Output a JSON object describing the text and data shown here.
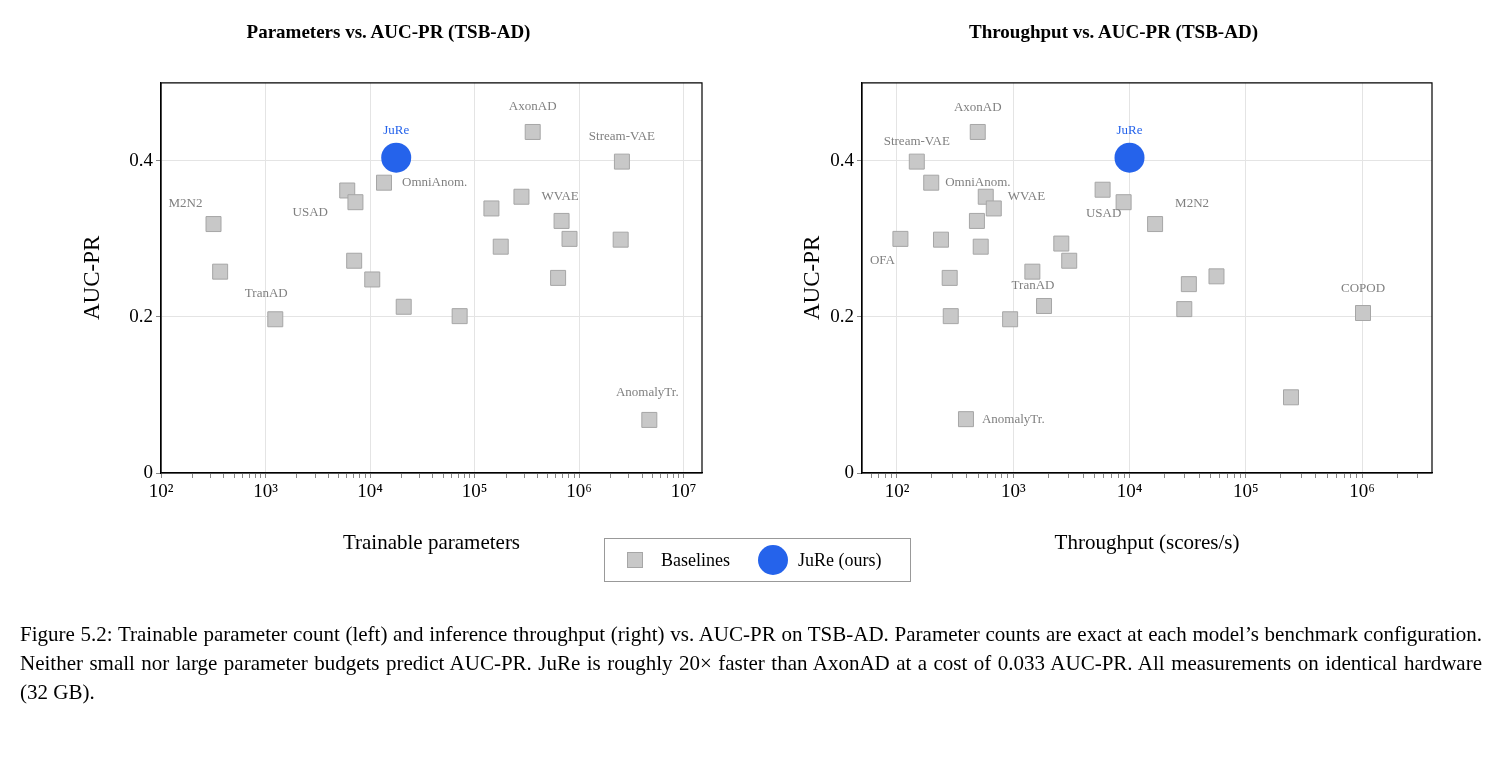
{
  "chart_data": [
    {
      "type": "scatter",
      "title": "Parameters vs. AUC-PR (TSB-AD)",
      "xlabel": "Trainable parameters",
      "ylabel": "AUC-PR",
      "log": "x",
      "grid": true,
      "legend": "bottom",
      "xlim": [
        100,
        15000000
      ],
      "ylim": [
        0,
        0.5
      ],
      "xticks": [
        {
          "value": 100,
          "label": "10²"
        },
        {
          "value": 200,
          "label": null
        },
        {
          "value": 300,
          "label": null
        },
        {
          "value": 400,
          "label": null
        },
        {
          "value": 500,
          "label": null
        },
        {
          "value": 600,
          "label": null
        },
        {
          "value": 700,
          "label": null
        },
        {
          "value": 800,
          "label": null
        },
        {
          "value": 900,
          "label": null
        },
        {
          "value": 1000,
          "label": "10³"
        },
        {
          "value": 2000,
          "label": null
        },
        {
          "value": 3000,
          "label": null
        },
        {
          "value": 4000,
          "label": null
        },
        {
          "value": 5000,
          "label": null
        },
        {
          "value": 6000,
          "label": null
        },
        {
          "value": 7000,
          "label": null
        },
        {
          "value": 8000,
          "label": null
        },
        {
          "value": 9000,
          "label": null
        },
        {
          "value": 10000,
          "label": "10⁴"
        },
        {
          "value": 20000,
          "label": null
        },
        {
          "value": 30000,
          "label": null
        },
        {
          "value": 40000,
          "label": null
        },
        {
          "value": 50000,
          "label": null
        },
        {
          "value": 60000,
          "label": null
        },
        {
          "value": 70000,
          "label": null
        },
        {
          "value": 80000,
          "label": null
        },
        {
          "value": 90000,
          "label": null
        },
        {
          "value": 100000,
          "label": "10⁵"
        },
        {
          "value": 200000,
          "label": null
        },
        {
          "value": 300000,
          "label": null
        },
        {
          "value": 400000,
          "label": null
        },
        {
          "value": 500000,
          "label": null
        },
        {
          "value": 600000,
          "label": null
        },
        {
          "value": 700000,
          "label": null
        },
        {
          "value": 800000,
          "label": null
        },
        {
          "value": 900000,
          "label": null
        },
        {
          "value": 1000000,
          "label": "10⁶"
        },
        {
          "value": 2000000,
          "label": null
        },
        {
          "value": 3000000,
          "label": null
        },
        {
          "value": 4000000,
          "label": null
        },
        {
          "value": 5000000,
          "label": null
        },
        {
          "value": 6000000,
          "label": null
        },
        {
          "value": 7000000,
          "label": null
        },
        {
          "value": 8000000,
          "label": null
        },
        {
          "value": 9000000,
          "label": null
        },
        {
          "value": 10000000,
          "label": "10⁷"
        }
      ],
      "yticks": [
        0,
        0.2,
        0.4
      ],
      "series": [
        {
          "name": "Baselines",
          "color": "#c8c8c8",
          "marker": "square",
          "x": [
            318,
            368,
            1240,
            6050,
            7250,
            13600,
            7050,
            10500,
            21000,
            72000,
            145000,
            178000,
            281000,
            360000,
            680000,
            810000,
            630000,
            2570000,
            2500000,
            4700000
          ],
          "values": [
            0.319,
            0.258,
            0.197,
            0.362,
            0.347,
            0.372,
            0.272,
            0.248,
            0.213,
            0.201,
            0.339,
            0.29,
            0.354,
            0.437,
            0.323,
            0.3,
            0.25,
            0.399,
            0.299,
            0.068
          ]
        },
        {
          "name": "JuRe (ours)",
          "color": "#2563eb",
          "marker": "circle",
          "x": [
            17800
          ],
          "values": [
            0.404
          ]
        }
      ],
      "annotations": [
        {
          "text": "JuRe",
          "x": 17800,
          "y": 0.404
        },
        {
          "text": "AxonAD",
          "x": 360000,
          "y": 0.437
        },
        {
          "text": "Stream-VAE",
          "x": 2570000,
          "y": 0.399
        },
        {
          "text": "OmniAnom.",
          "x": 13600,
          "y": 0.372
        },
        {
          "text": "WVAE",
          "x": 281000,
          "y": 0.354
        },
        {
          "text": "M2N2",
          "x": 318,
          "y": 0.319
        },
        {
          "text": "USAD",
          "x": 6050,
          "y": 0.362
        },
        {
          "text": "TranAD",
          "x": 1240,
          "y": 0.197
        },
        {
          "text": "AnomalyTr.",
          "x": 4700000,
          "y": 0.068
        },
        "Figure 5.2: Trainable parameter count (left) and inference throughput (right) vs. AUC-PR on TSB-AD. Parameter counts are exact at each model’s benchmark configuration. Neither small nor large parameter budgets predict AUC-PR. JuRe is roughly 20× faster than AxonAD at a cost of 0.033 AUC-PR. All measurements on identical hardware (32 GB)."
      ]
    },
    {
      "type": "scatter",
      "title": "Throughput vs. AUC-PR (TSB-AD)",
      "xlabel": "Throughput (scores/s)",
      "ylabel": "AUC-PR",
      "log": "x",
      "grid": true,
      "xlim": [
        50,
        4000000
      ],
      "ylim": [
        0,
        0.5
      ],
      "xticks": [
        {
          "value": 60,
          "label": null
        },
        {
          "value": 70,
          "label": null
        },
        {
          "value": 80,
          "label": null
        },
        {
          "value": 90,
          "label": null
        },
        {
          "value": 100,
          "label": "10²"
        },
        {
          "value": 200,
          "label": null
        },
        {
          "value": 300,
          "label": null
        },
        {
          "value": 400,
          "label": null
        },
        {
          "value": 500,
          "label": null
        },
        {
          "value": 600,
          "label": null
        },
        {
          "value": 700,
          "label": null
        },
        {
          "value": 800,
          "label": null
        },
        {
          "value": 900,
          "label": null
        },
        {
          "value": 1000,
          "label": "10³"
        },
        {
          "value": 2000,
          "label": null
        },
        {
          "value": 3000,
          "label": null
        },
        {
          "value": 4000,
          "label": null
        },
        {
          "value": 5000,
          "label": null
        },
        {
          "value": 6000,
          "label": null
        },
        {
          "value": 7000,
          "label": null
        },
        {
          "value": 8000,
          "label": null
        },
        {
          "value": 9000,
          "label": null
        },
        {
          "value": 10000,
          "label": "10⁴"
        },
        {
          "value": 20000,
          "label": null
        },
        {
          "value": 30000,
          "label": null
        },
        {
          "value": 40000,
          "label": null
        },
        {
          "value": 50000,
          "label": null
        },
        {
          "value": 60000,
          "label": null
        },
        {
          "value": 70000,
          "label": null
        },
        {
          "value": 80000,
          "label": null
        },
        {
          "value": 90000,
          "label": null
        },
        {
          "value": 100000,
          "label": "10⁵"
        },
        {
          "value": 200000,
          "label": null
        },
        {
          "value": 300000,
          "label": null
        },
        {
          "value": 400000,
          "label": null
        },
        {
          "value": 500000,
          "label": null
        },
        {
          "value": 600000,
          "label": null
        },
        {
          "value": 700000,
          "label": null
        },
        {
          "value": 800000,
          "label": null
        },
        {
          "value": 900000,
          "label": null
        },
        {
          "value": 1000000,
          "label": "10⁶"
        },
        {
          "value": 2000000,
          "label": null
        },
        {
          "value": 3000000,
          "label": null
        }
      ],
      "yticks": [
        0,
        0.2,
        0.4
      ],
      "legend": "bottom",
      "series": [
        {
          "name": "Baselines",
          "color": "#c8c8c8",
          "marker": "square",
          "x": [
            495,
            148,
            197,
            580,
            680,
            487,
            107,
            239,
            525,
            284,
            290,
            940,
            392,
            1460,
            1840,
            2590,
            3030,
            5870,
            8900,
            16600,
            29600,
            32400,
            56000,
            245000,
            1020000
          ],
          "values": [
            0.437,
            0.399,
            0.372,
            0.354,
            0.339,
            0.323,
            0.3,
            0.299,
            0.29,
            0.25,
            0.201,
            0.197,
            0.069,
            0.258,
            0.214,
            0.294,
            0.272,
            0.363,
            0.347,
            0.319,
            0.21,
            0.242,
            0.252,
            0.097,
            0.205
          ]
        },
        {
          "name": "JuRe (ours)",
          "color": "#2563eb",
          "marker": "circle",
          "x": [
            10000
          ],
          "values": [
            0.404
          ]
        }
      ],
      "annotations": [
        {
          "text": "AxonAD",
          "x": 495,
          "y": 0.437
        },
        {
          "text": "JuRe",
          "x": 10000,
          "y": 0.404
        },
        {
          "text": "Stream-VAE",
          "x": 148,
          "y": 0.399
        },
        {
          "text": "OmniAnom.",
          "x": 197,
          "y": 0.372
        },
        {
          "text": "WVAE",
          "x": 680,
          "y": 0.339
        },
        {
          "text": "USAD",
          "x": 8900,
          "y": 0.347
        },
        {
          "text": "M2N2",
          "x": 16600,
          "y": 0.319
        },
        {
          "text": "OFA",
          "x": 107,
          "y": 0.3
        },
        {
          "text": "TranAD",
          "x": 1840,
          "y": 0.214
        },
        {
          "text": "AnomalyTr.",
          "x": 392,
          "y": 0.069
        },
        {
          "text": "COPOD",
          "x": 1020000,
          "y": 0.205
        }
      ]
    }
  ]
}
